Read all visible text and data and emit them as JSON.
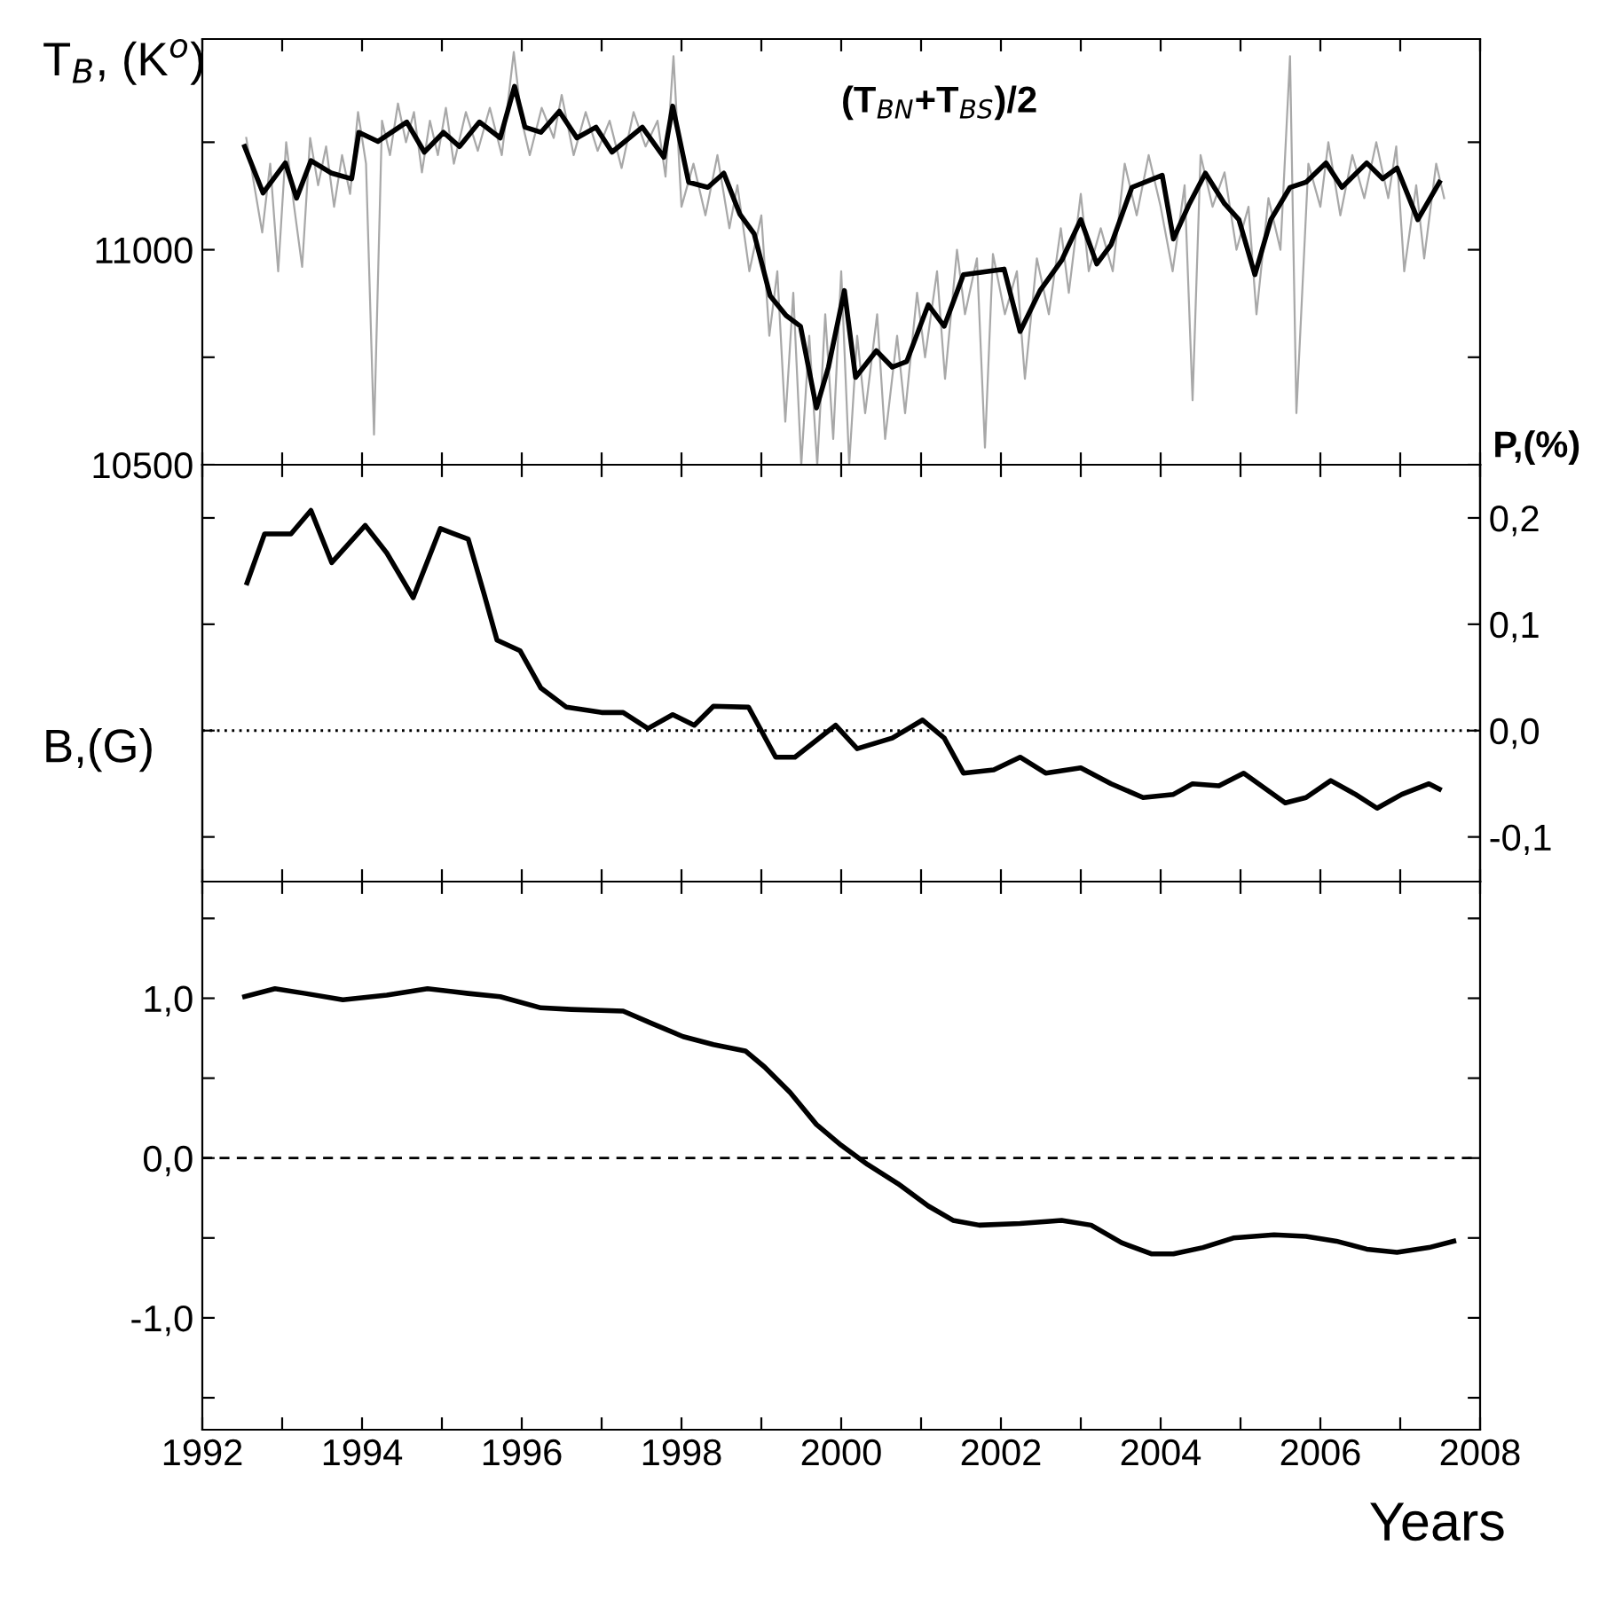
{
  "chart_data": [
    {
      "type": "line",
      "ylabel": "T$_{B}$, (K$^{o}$)",
      "annotations": [
        "(T$_{BN}$+T$_{BS}$)/2"
      ],
      "xlim": [
        1992,
        2008
      ],
      "xticks": [
        {
          "value": 1992,
          "label": null
        },
        {
          "value": 1993,
          "label": null
        },
        {
          "value": 1994,
          "label": null
        },
        {
          "value": 1995,
          "label": null
        },
        {
          "value": 1996,
          "label": null
        },
        {
          "value": 1997,
          "label": null
        },
        {
          "value": 1998,
          "label": null
        },
        {
          "value": 1999,
          "label": null
        },
        {
          "value": 2000,
          "label": null
        },
        {
          "value": 2001,
          "label": null
        },
        {
          "value": 2002,
          "label": null
        },
        {
          "value": 2003,
          "label": null
        },
        {
          "value": 2004,
          "label": null
        },
        {
          "value": 2005,
          "label": null
        },
        {
          "value": 2006,
          "label": null
        },
        {
          "value": 2007,
          "label": null
        },
        {
          "value": 2008,
          "label": null
        }
      ],
      "ylim": [
        10500,
        11490
      ],
      "yticks": [
        10500,
        {
          "value": 10750,
          "label": null
        },
        11000,
        {
          "value": 11250,
          "label": null
        }
      ],
      "tick_labels": "y",
      "grid": false,
      "legend": false,
      "series": [
        {
          "color": "#a8a8a8",
          "x": [
            1992.55,
            1992.65,
            1992.75,
            1992.85,
            1992.95,
            1993.05,
            1993.15,
            1993.25,
            1993.35,
            1993.45,
            1993.55,
            1993.65,
            1993.75,
            1993.85,
            1993.95,
            1994.05,
            1994.15,
            1994.25,
            1994.35,
            1994.45,
            1994.55,
            1994.65,
            1994.75,
            1994.85,
            1994.95,
            1995.05,
            1995.15,
            1995.3,
            1995.45,
            1995.6,
            1995.75,
            1995.9,
            1996.0,
            1996.1,
            1996.25,
            1996.4,
            1996.5,
            1996.65,
            1996.8,
            1996.95,
            1997.1,
            1997.25,
            1997.4,
            1997.55,
            1997.7,
            1997.8,
            1997.9,
            1998.0,
            1998.15,
            1998.3,
            1998.45,
            1998.6,
            1998.7,
            1998.85,
            1999.0,
            1999.1,
            1999.2,
            1999.3,
            1999.4,
            1999.5,
            1999.6,
            1999.7,
            1999.8,
            1999.9,
            2000.0,
            2000.1,
            2000.2,
            2000.3,
            2000.45,
            2000.55,
            2000.7,
            2000.8,
            2000.95,
            2001.05,
            2001.2,
            2001.3,
            2001.45,
            2001.55,
            2001.7,
            2001.8,
            2001.9,
            2002.05,
            2002.2,
            2002.3,
            2002.45,
            2002.6,
            2002.75,
            2002.85,
            2003.0,
            2003.1,
            2003.25,
            2003.4,
            2003.55,
            2003.7,
            2003.85,
            2004.0,
            2004.15,
            2004.3,
            2004.4,
            2004.5,
            2004.65,
            2004.8,
            2004.95,
            2005.1,
            2005.2,
            2005.35,
            2005.5,
            2005.62,
            2005.7,
            2005.85,
            2006.0,
            2006.1,
            2006.25,
            2006.4,
            2006.55,
            2006.7,
            2006.85,
            2006.95,
            2007.05,
            2007.2,
            2007.3,
            2007.45,
            2007.55
          ],
          "values": [
            11260,
            11150,
            11040,
            11200,
            10950,
            11250,
            11100,
            10960,
            11260,
            11150,
            11240,
            11100,
            11220,
            11130,
            11320,
            11200,
            10570,
            11300,
            11220,
            11340,
            11250,
            11320,
            11180,
            11300,
            11220,
            11330,
            11200,
            11320,
            11230,
            11330,
            11220,
            11460,
            11300,
            11220,
            11330,
            11260,
            11360,
            11220,
            11320,
            11230,
            11300,
            11190,
            11320,
            11240,
            11300,
            11170,
            11450,
            11100,
            11200,
            11080,
            11220,
            11050,
            11150,
            10950,
            11080,
            10800,
            10950,
            10600,
            10900,
            10500,
            10800,
            10500,
            10850,
            10560,
            10950,
            10500,
            10800,
            10620,
            10850,
            10560,
            10800,
            10620,
            10900,
            10750,
            10950,
            10700,
            11000,
            10850,
            10980,
            10540,
            10990,
            10850,
            10950,
            10700,
            10980,
            10850,
            11050,
            10900,
            11130,
            10950,
            11050,
            10950,
            11200,
            11080,
            11220,
            11100,
            10950,
            11150,
            10650,
            11220,
            11100,
            11180,
            11000,
            11100,
            10850,
            11120,
            11000,
            11450,
            10620,
            11200,
            11100,
            11250,
            11080,
            11220,
            11120,
            11250,
            11120,
            11240,
            10950,
            11150,
            10980,
            11200,
            11120
          ]
        },
        {
          "color": "#000000",
          "x": [
            1992.53,
            1992.76,
            1993.04,
            1993.18,
            1993.36,
            1993.62,
            1993.87,
            1993.96,
            1994.2,
            1994.56,
            1994.78,
            1995.02,
            1995.22,
            1995.47,
            1995.73,
            1995.91,
            1996.04,
            1996.24,
            1996.47,
            1996.69,
            1996.93,
            1997.13,
            1997.51,
            1997.78,
            1997.89,
            1998.09,
            1998.33,
            1998.53,
            1998.73,
            1998.91,
            1999.11,
            1999.31,
            1999.49,
            1999.69,
            1999.84,
            2000.04,
            2000.18,
            2000.44,
            2000.64,
            2000.82,
            2001.09,
            2001.29,
            2001.53,
            2002.04,
            2002.24,
            2002.49,
            2002.76,
            2003.0,
            2003.2,
            2003.38,
            2003.64,
            2004.02,
            2004.16,
            2004.36,
            2004.56,
            2004.8,
            2004.98,
            2005.18,
            2005.38,
            2005.62,
            2005.82,
            2006.07,
            2006.27,
            2006.58,
            2006.78,
            2006.96,
            2007.22,
            2007.49
          ],
          "values": [
            11240,
            11132,
            11202,
            11120,
            11207,
            11178,
            11165,
            11273,
            11252,
            11297,
            11227,
            11273,
            11240,
            11297,
            11260,
            11380,
            11285,
            11273,
            11322,
            11260,
            11285,
            11227,
            11285,
            11215,
            11334,
            11157,
            11145,
            11178,
            11083,
            11037,
            10893,
            10847,
            10822,
            10632,
            10727,
            10905,
            10703,
            10765,
            10727,
            10740,
            10872,
            10822,
            10942,
            10955,
            10810,
            10905,
            10975,
            11070,
            10967,
            11012,
            11145,
            11173,
            11025,
            11107,
            11178,
            11107,
            11070,
            10942,
            11070,
            11145,
            11157,
            11202,
            11145,
            11202,
            11165,
            11190,
            11070,
            11157
          ]
        }
      ]
    },
    {
      "type": "line",
      "y2label": "P,(%)",
      "xlim": [
        1992,
        2008
      ],
      "xticks": [
        {
          "value": 1992,
          "label": null
        },
        {
          "value": 1993,
          "label": null
        },
        {
          "value": 1994,
          "label": null
        },
        {
          "value": 1995,
          "label": null
        },
        {
          "value": 1996,
          "label": null
        },
        {
          "value": 1997,
          "label": null
        },
        {
          "value": 1998,
          "label": null
        },
        {
          "value": 1999,
          "label": null
        },
        {
          "value": 2000,
          "label": null
        },
        {
          "value": 2001,
          "label": null
        },
        {
          "value": 2002,
          "label": null
        },
        {
          "value": 2003,
          "label": null
        },
        {
          "value": 2004,
          "label": null
        },
        {
          "value": 2005,
          "label": null
        },
        {
          "value": 2006,
          "label": null
        },
        {
          "value": 2007,
          "label": null
        },
        {
          "value": 2008,
          "label": null
        }
      ],
      "y2lim": [
        -0.142,
        0.25
      ],
      "y2ticks": [
        {
          "value": 0.2,
          "label": "0,2"
        },
        {
          "value": 0.1,
          "label": "0,1"
        },
        {
          "value": 0.0,
          "label": "0,0"
        },
        {
          "value": -0.1,
          "label": "-0,1"
        }
      ],
      "tick_labels": "y",
      "grid": false,
      "legend": false,
      "ref_lines": [
        {
          "axis": "y2",
          "value": 0,
          "color": "#000000",
          "line_style": "dotted"
        }
      ],
      "series": [
        {
          "color": "#000000",
          "axis": "y2",
          "x": [
            1992.56,
            1992.78,
            1993.11,
            1993.36,
            1993.62,
            1994.04,
            1994.31,
            1994.64,
            1994.98,
            1995.33,
            1995.53,
            1995.69,
            1995.98,
            1996.24,
            1996.56,
            1997.0,
            1997.27,
            1997.58,
            1997.89,
            1998.16,
            1998.4,
            1998.84,
            1999.18,
            1999.42,
            1999.93,
            2000.2,
            2000.42,
            2000.64,
            2001.02,
            2001.29,
            2001.53,
            2001.91,
            2002.24,
            2002.56,
            2003.0,
            2003.38,
            2003.78,
            2004.16,
            2004.4,
            2004.73,
            2005.04,
            2005.56,
            2005.82,
            2006.13,
            2006.44,
            2006.71,
            2007.02,
            2007.36,
            2007.49
          ],
          "values": [
            0.139,
            0.185,
            0.185,
            0.207,
            0.158,
            0.193,
            0.167,
            0.125,
            0.19,
            0.18,
            0.128,
            0.085,
            0.075,
            0.04,
            0.022,
            0.017,
            0.017,
            0.002,
            0.015,
            0.005,
            0.023,
            0.022,
            -0.025,
            -0.025,
            0.005,
            -0.017,
            -0.012,
            -0.007,
            0.01,
            -0.007,
            -0.04,
            -0.037,
            -0.025,
            -0.04,
            -0.035,
            -0.05,
            -0.063,
            -0.06,
            -0.05,
            -0.052,
            -0.04,
            -0.068,
            -0.063,
            -0.047,
            -0.06,
            -0.073,
            -0.06,
            -0.05,
            -0.055
          ]
        }
      ]
    },
    {
      "type": "line",
      "ylabel": "B,(G)",
      "xlabel": "Years",
      "xlim": [
        1992,
        2008
      ],
      "xticks": [
        1992,
        {
          "value": 1993,
          "label": null
        },
        1994,
        {
          "value": 1995,
          "label": null
        },
        1996,
        {
          "value": 1997,
          "label": null
        },
        1998,
        {
          "value": 1999,
          "label": null
        },
        2000,
        {
          "value": 2001,
          "label": null
        },
        2002,
        {
          "value": 2003,
          "label": null
        },
        2004,
        {
          "value": 2005,
          "label": null
        },
        2006,
        {
          "value": 2007,
          "label": null
        },
        2008
      ],
      "ylim": [
        -1.7,
        1.73
      ],
      "yticks": [
        {
          "value": -1.5,
          "label": null
        },
        {
          "value": -1.0,
          "label": "-1,0"
        },
        {
          "value": -0.5,
          "label": null
        },
        {
          "value": 0.0,
          "label": "0,0"
        },
        {
          "value": 0.5,
          "label": null
        },
        {
          "value": 1.0,
          "label": "1,0"
        },
        {
          "value": 1.5,
          "label": null
        }
      ],
      "grid": false,
      "legend": false,
      "ref_lines": [
        {
          "axis": "y",
          "value": 0,
          "color": "#000000",
          "line_style": "dashed"
        }
      ],
      "series": [
        {
          "color": "#000000",
          "x": [
            1992.53,
            1992.91,
            1993.29,
            1993.76,
            1994.31,
            1994.82,
            1995.33,
            1995.73,
            1996.24,
            1996.62,
            1997.27,
            1997.64,
            1998.02,
            1998.4,
            1998.8,
            1999.04,
            1999.36,
            1999.69,
            2000.0,
            2000.33,
            2000.71,
            2001.09,
            2001.4,
            2001.73,
            2002.24,
            2002.76,
            2003.13,
            2003.51,
            2003.89,
            2004.16,
            2004.53,
            2004.91,
            2005.42,
            2005.82,
            2006.2,
            2006.58,
            2006.96,
            2007.36,
            2007.67
          ],
          "values": [
            1.01,
            1.06,
            1.03,
            0.99,
            1.02,
            1.06,
            1.03,
            1.01,
            0.94,
            0.93,
            0.92,
            0.84,
            0.76,
            0.71,
            0.67,
            0.57,
            0.41,
            0.21,
            0.08,
            -0.04,
            -0.16,
            -0.3,
            -0.39,
            -0.42,
            -0.41,
            -0.39,
            -0.42,
            -0.53,
            -0.6,
            -0.6,
            -0.56,
            -0.5,
            -0.48,
            -0.49,
            -0.52,
            -0.57,
            -0.59,
            -0.56,
            -0.52
          ]
        }
      ]
    }
  ]
}
